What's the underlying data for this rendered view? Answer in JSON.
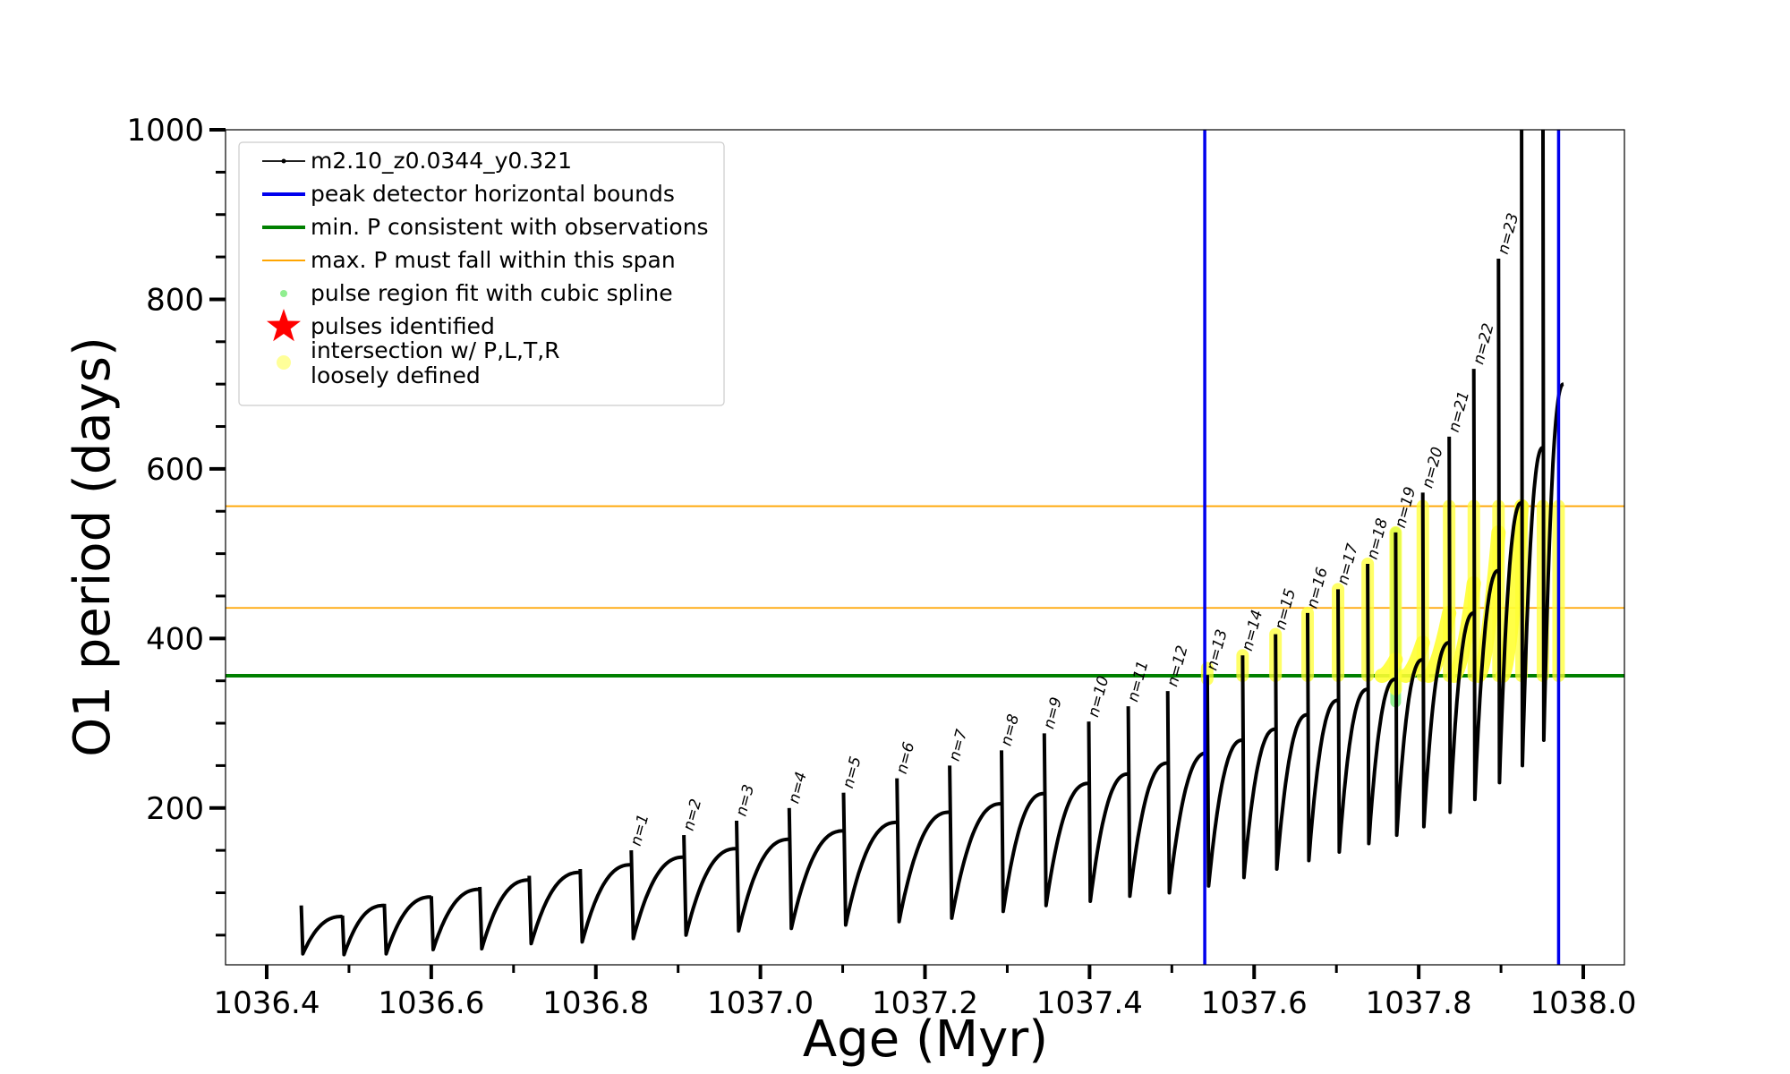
{
  "chart_data": {
    "type": "line",
    "xlabel": "Age (Myr)",
    "ylabel": "O1 period (days)",
    "xlim": [
      1036.35,
      1038.05
    ],
    "ylim": [
      15,
      1000
    ],
    "x_ticks": [
      1036.4,
      1036.6,
      1036.8,
      1037.0,
      1037.2,
      1037.4,
      1037.6,
      1037.8,
      1038.0
    ],
    "x_tick_labels": [
      "1036.4",
      "1036.6",
      "1036.8",
      "1037.0",
      "1037.2",
      "1037.4",
      "1037.6",
      "1037.8",
      "1038.0"
    ],
    "y_ticks": [
      200,
      400,
      600,
      800,
      1000
    ],
    "y_tick_labels": [
      "200",
      "400",
      "600",
      "800",
      "1000"
    ],
    "y_minor_step": 50,
    "legend_position": "top-left",
    "legend": [
      {
        "label": "m2.10_z0.0344_y0.321",
        "marker": "line-dot",
        "color": "#000000"
      },
      {
        "label": "peak detector horizontal bounds",
        "marker": "line",
        "color": "#0000ee"
      },
      {
        "label": "min. P consistent with observations",
        "marker": "line",
        "color": "#008000"
      },
      {
        "label": "max. P must fall within this span",
        "marker": "thin-line",
        "color": "#ffa500"
      },
      {
        "label": "pulse region fit with cubic spline",
        "marker": "dot",
        "color": "#90ee90"
      },
      {
        "label": "pulses identified",
        "marker": "star",
        "color": "#ff0000"
      },
      {
        "label_lines": [
          "intersection w/ P,L,T,R",
          "loosely defined"
        ],
        "marker": "circle",
        "color": "#ffff99"
      }
    ],
    "vertical_lines": [
      {
        "x": 1037.54,
        "color": "#0000ee",
        "name": "peak detector horizontal bounds"
      },
      {
        "x": 1037.97,
        "color": "#0000ee",
        "name": "peak detector horizontal bounds"
      }
    ],
    "horizontal_lines": [
      {
        "y": 356,
        "color": "#008000",
        "name": "min. P consistent with observations"
      },
      {
        "y": 436,
        "color": "#ffa500",
        "name": "max. P must fall within this span"
      },
      {
        "y": 556,
        "color": "#ffa500",
        "name": "max. P must fall within this span"
      }
    ],
    "series": [
      {
        "name": "m2.10_z0.0344_y0.321",
        "color": "#000000",
        "pulses": [
          {
            "x": 1036.442,
            "spike": 85,
            "min": 28,
            "end": 72
          },
          {
            "x": 1036.492,
            "spike": 73,
            "min": 27,
            "end": 85
          },
          {
            "x": 1036.543,
            "spike": 87,
            "min": 28,
            "end": 95
          },
          {
            "x": 1036.6,
            "spike": 96,
            "min": 33,
            "end": 104
          },
          {
            "x": 1036.659,
            "spike": 107,
            "min": 34,
            "end": 115
          },
          {
            "x": 1036.719,
            "spike": 120,
            "min": 40,
            "end": 124
          },
          {
            "x": 1036.781,
            "spike": 128,
            "min": 42,
            "end": 133
          },
          {
            "x": 1036.843,
            "spike": 150,
            "min": 46,
            "end": 142
          },
          {
            "x": 1036.907,
            "spike": 168,
            "min": 50,
            "end": 152
          },
          {
            "x": 1036.971,
            "spike": 185,
            "min": 55,
            "end": 163
          },
          {
            "x": 1037.035,
            "spike": 200,
            "min": 58,
            "end": 173
          },
          {
            "x": 1037.101,
            "spike": 218,
            "min": 62,
            "end": 183
          },
          {
            "x": 1037.166,
            "spike": 235,
            "min": 66,
            "end": 195
          },
          {
            "x": 1037.23,
            "spike": 250,
            "min": 70,
            "end": 205
          },
          {
            "x": 1037.293,
            "spike": 268,
            "min": 78,
            "end": 217
          },
          {
            "x": 1037.345,
            "spike": 288,
            "min": 85,
            "end": 229
          },
          {
            "x": 1037.399,
            "spike": 302,
            "min": 90,
            "end": 240
          },
          {
            "x": 1037.447,
            "spike": 320,
            "min": 96,
            "end": 253
          },
          {
            "x": 1037.495,
            "spike": 338,
            "min": 100,
            "end": 265
          },
          {
            "x": 1037.543,
            "spike": 357,
            "min": 108,
            "end": 280
          },
          {
            "x": 1037.586,
            "spike": 380,
            "min": 118,
            "end": 293
          },
          {
            "x": 1037.626,
            "spike": 405,
            "min": 128,
            "end": 310
          },
          {
            "x": 1037.665,
            "spike": 430,
            "min": 138,
            "end": 327
          },
          {
            "x": 1037.702,
            "spike": 458,
            "min": 148,
            "end": 340
          },
          {
            "x": 1037.738,
            "spike": 488,
            "min": 158,
            "end": 352
          },
          {
            "x": 1037.772,
            "spike": 525,
            "min": 168,
            "end": 375
          },
          {
            "x": 1037.805,
            "spike": 572,
            "min": 178,
            "end": 395
          },
          {
            "x": 1037.837,
            "spike": 638,
            "min": 195,
            "end": 430
          },
          {
            "x": 1037.867,
            "spike": 718,
            "min": 210,
            "end": 480
          },
          {
            "x": 1037.897,
            "spike": 848,
            "min": 230,
            "end": 560
          },
          {
            "x": 1037.925,
            "spike": 1000,
            "min": 250,
            "end": 625
          },
          {
            "x": 1037.951,
            "spike": 1000,
            "min": 280,
            "end": 700
          }
        ]
      }
    ],
    "pulse_labels": [
      {
        "text": "n=1",
        "x": 1036.843,
        "y": 150
      },
      {
        "text": "n=2",
        "x": 1036.907,
        "y": 168
      },
      {
        "text": "n=3",
        "x": 1036.971,
        "y": 185
      },
      {
        "text": "n=4",
        "x": 1037.035,
        "y": 200
      },
      {
        "text": "n=5",
        "x": 1037.101,
        "y": 218
      },
      {
        "text": "n=6",
        "x": 1037.166,
        "y": 235
      },
      {
        "text": "n=7",
        "x": 1037.23,
        "y": 250
      },
      {
        "text": "n=8",
        "x": 1037.293,
        "y": 268
      },
      {
        "text": "n=9",
        "x": 1037.345,
        "y": 288
      },
      {
        "text": "n=10",
        "x": 1037.399,
        "y": 302
      },
      {
        "text": "n=11",
        "x": 1037.447,
        "y": 320
      },
      {
        "text": "n=12",
        "x": 1037.495,
        "y": 338
      },
      {
        "text": "n=13",
        "x": 1037.543,
        "y": 357
      },
      {
        "text": "n=14",
        "x": 1037.586,
        "y": 380
      },
      {
        "text": "n=15",
        "x": 1037.626,
        "y": 405
      },
      {
        "text": "n=16",
        "x": 1037.665,
        "y": 430
      },
      {
        "text": "n=17",
        "x": 1037.702,
        "y": 458
      },
      {
        "text": "n=18",
        "x": 1037.738,
        "y": 488
      },
      {
        "text": "n=19",
        "x": 1037.772,
        "y": 525
      },
      {
        "text": "n=20",
        "x": 1037.805,
        "y": 572
      },
      {
        "text": "n=21",
        "x": 1037.837,
        "y": 638
      },
      {
        "text": "n=22",
        "x": 1037.867,
        "y": 718
      },
      {
        "text": "n=23",
        "x": 1037.897,
        "y": 848
      }
    ],
    "spline_regions": [
      {
        "x": 1037.772,
        "y0": 325,
        "y1": 525,
        "color": "#90ee90"
      }
    ],
    "intersection_regions": {
      "color": "#ffff33",
      "columns": [
        {
          "x": 1037.543,
          "y0": 352,
          "y1": 365
        },
        {
          "x": 1037.586,
          "y0": 356,
          "y1": 380
        },
        {
          "x": 1037.626,
          "y0": 356,
          "y1": 405
        },
        {
          "x": 1037.665,
          "y0": 356,
          "y1": 430
        },
        {
          "x": 1037.702,
          "y0": 356,
          "y1": 458
        },
        {
          "x": 1037.738,
          "y0": 356,
          "y1": 488
        },
        {
          "x": 1037.772,
          "y0": 340,
          "y1": 525
        },
        {
          "x": 1037.805,
          "y0": 356,
          "y1": 556
        },
        {
          "x": 1037.837,
          "y0": 356,
          "y1": 556
        },
        {
          "x": 1037.867,
          "y0": 356,
          "y1": 556
        },
        {
          "x": 1037.897,
          "y0": 356,
          "y1": 556
        },
        {
          "x": 1037.925,
          "y0": 356,
          "y1": 556
        },
        {
          "x": 1037.951,
          "y0": 356,
          "y1": 556
        },
        {
          "x": 1037.97,
          "y0": 356,
          "y1": 556
        }
      ],
      "arcs": [
        {
          "x0": 1037.755,
          "x1": 1037.772,
          "y_end": 375
        },
        {
          "x0": 1037.784,
          "x1": 1037.805,
          "y_end": 395
        },
        {
          "x0": 1037.812,
          "x1": 1037.837,
          "y_end": 430
        },
        {
          "x0": 1037.843,
          "x1": 1037.867,
          "y_end": 465
        },
        {
          "x0": 1037.873,
          "x1": 1037.897,
          "y_end": 525
        },
        {
          "x0": 1037.902,
          "x1": 1037.925,
          "y_end": 556
        }
      ]
    }
  }
}
